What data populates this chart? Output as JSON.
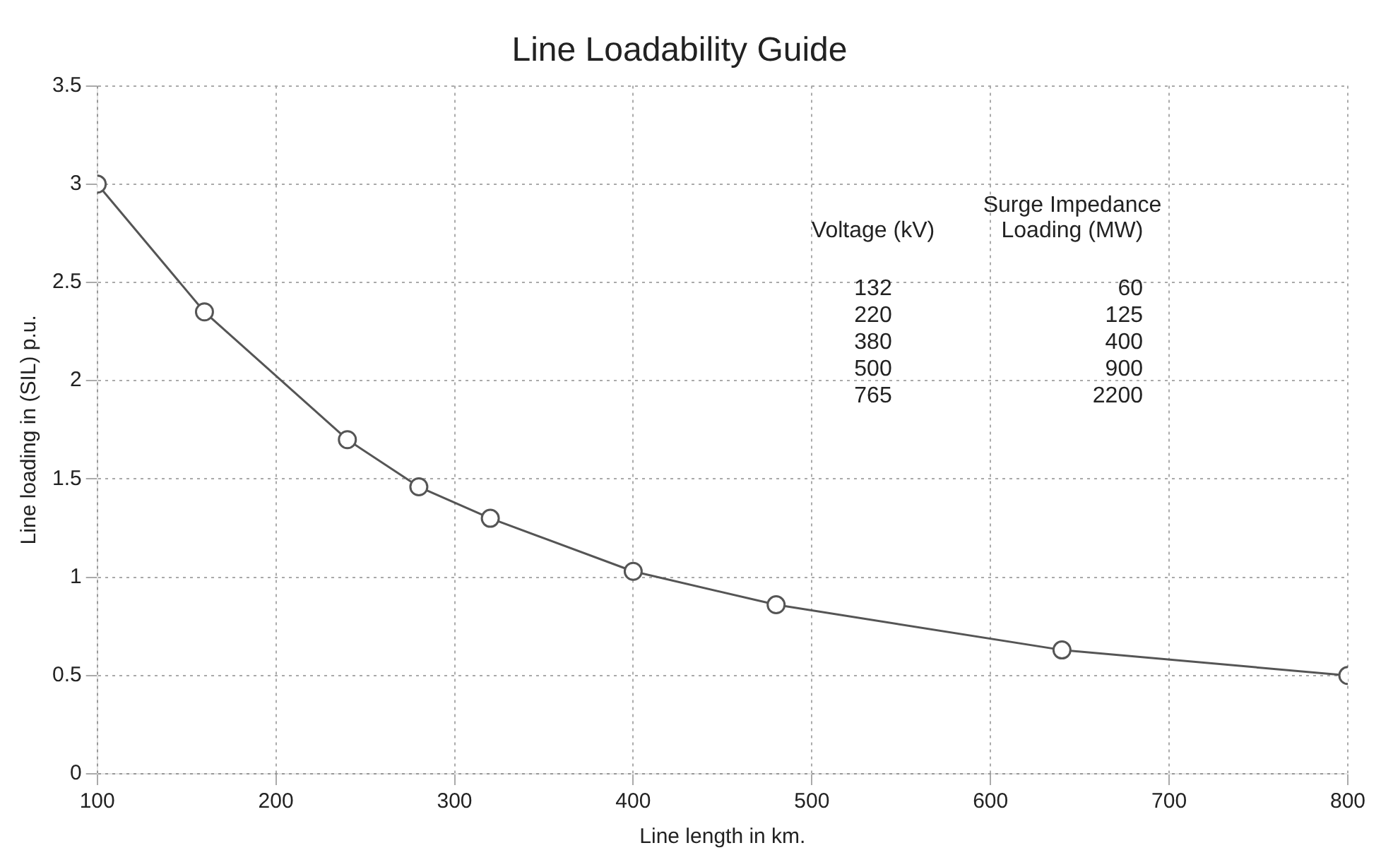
{
  "chart_data": {
    "type": "line",
    "title": "Line Loadability Guide",
    "xlabel": "Line length in km.",
    "ylabel": "Line loading in (SIL) p.u.",
    "x": [
      100,
      160,
      240,
      280,
      320,
      400,
      480,
      640,
      800
    ],
    "series": [
      {
        "color": "#555555",
        "values": [
          3,
          2.35,
          1.7,
          1.46,
          1.3,
          1.03,
          0.86,
          0.63,
          0.5
        ]
      }
    ],
    "xlim": [
      100,
      800
    ],
    "xticks": [
      100,
      200,
      300,
      400,
      500,
      600,
      700,
      800
    ],
    "ylim": [
      0,
      3.5
    ],
    "yticks": [
      0,
      0.5,
      1,
      1.5,
      2,
      2.5,
      3,
      3.5
    ],
    "grid": true,
    "legend": false,
    "marker": "circle",
    "annotations": [
      "Voltage (kV)",
      "Surge Impedance Loading (MW)",
      "132",
      "60",
      "220",
      "125",
      "380",
      "400",
      "500",
      "900",
      "765",
      "2200"
    ]
  }
}
